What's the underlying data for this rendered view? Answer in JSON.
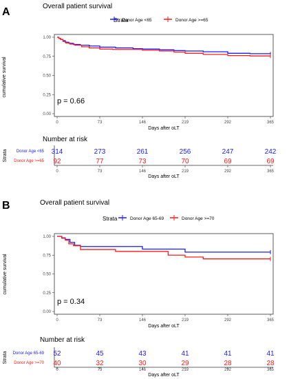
{
  "chart_data": [
    {
      "panel_letter": "A",
      "title": "Overall patient survival",
      "type": "line",
      "legend": {
        "title": "Strata",
        "position": "top"
      },
      "xlabel": "Days after oLT",
      "ylabel": "cumulative survival",
      "x_ticks": [
        0,
        73,
        146,
        219,
        292,
        365
      ],
      "y_ticks": [
        "0.00",
        "0.25",
        "0.50",
        "0.75",
        "1.00"
      ],
      "xlim": [
        0,
        365
      ],
      "ylim": [
        0,
        1
      ],
      "grid": false,
      "p_value": "p = 0.66",
      "series": [
        {
          "name": "Donor Age <65",
          "color": "#1a1aff",
          "points": [
            [
              0,
              1.0
            ],
            [
              3,
              0.985
            ],
            [
              6,
              0.97
            ],
            [
              10,
              0.955
            ],
            [
              14,
              0.935
            ],
            [
              20,
              0.92
            ],
            [
              28,
              0.905
            ],
            [
              40,
              0.895
            ],
            [
              55,
              0.885
            ],
            [
              73,
              0.87
            ],
            [
              100,
              0.86
            ],
            [
              130,
              0.85
            ],
            [
              146,
              0.845
            ],
            [
              175,
              0.835
            ],
            [
              200,
              0.825
            ],
            [
              219,
              0.82
            ],
            [
              250,
              0.81
            ],
            [
              292,
              0.79
            ],
            [
              330,
              0.785
            ],
            [
              365,
              0.78
            ]
          ]
        },
        {
          "name": "Donor Age >=65",
          "color": "#ff1a1a",
          "points": [
            [
              0,
              1.0
            ],
            [
              3,
              0.985
            ],
            [
              6,
              0.97
            ],
            [
              10,
              0.945
            ],
            [
              15,
              0.925
            ],
            [
              22,
              0.91
            ],
            [
              30,
              0.895
            ],
            [
              42,
              0.875
            ],
            [
              55,
              0.86
            ],
            [
              73,
              0.845
            ],
            [
              95,
              0.84
            ],
            [
              146,
              0.83
            ],
            [
              175,
              0.82
            ],
            [
              200,
              0.805
            ],
            [
              219,
              0.79
            ],
            [
              250,
              0.775
            ],
            [
              292,
              0.76
            ],
            [
              330,
              0.755
            ],
            [
              365,
              0.755
            ]
          ]
        }
      ],
      "risk_table": {
        "title": "Number at risk",
        "ylabel": "Strata",
        "xlabel": "Days after oLT",
        "rows": [
          {
            "label": "Donor Age <65",
            "color": "#1a1aff",
            "values": [
              314,
              273,
              261,
              256,
              247,
              242
            ]
          },
          {
            "label": "Donor Age >=65",
            "color": "#ff1a1a",
            "values": [
              92,
              77,
              73,
              70,
              69,
              69
            ]
          }
        ]
      }
    },
    {
      "panel_letter": "B",
      "title": "Overall patient survival",
      "type": "line",
      "legend": {
        "title": "Strata",
        "position": "top"
      },
      "xlabel": "Days after oLT",
      "ylabel": "cumulative survival",
      "x_ticks": [
        0,
        73,
        146,
        219,
        292,
        365
      ],
      "y_ticks": [
        "0.00",
        "0.25",
        "0.50",
        "0.75",
        "1.00"
      ],
      "xlim": [
        0,
        365
      ],
      "ylim": [
        0,
        1
      ],
      "grid": false,
      "p_value": "p = 0.34",
      "series": [
        {
          "name": "Donor Age 65-69",
          "color": "#1a1aff",
          "points": [
            [
              0,
              1.0
            ],
            [
              8,
              0.98
            ],
            [
              14,
              0.96
            ],
            [
              22,
              0.92
            ],
            [
              30,
              0.88
            ],
            [
              40,
              0.865
            ],
            [
              73,
              0.865
            ],
            [
              146,
              0.83
            ],
            [
              219,
              0.79
            ],
            [
              292,
              0.79
            ],
            [
              365,
              0.79
            ]
          ]
        },
        {
          "name": "Donor Age >=70",
          "color": "#ff1a1a",
          "points": [
            [
              0,
              1.0
            ],
            [
              8,
              0.975
            ],
            [
              14,
              0.95
            ],
            [
              20,
              0.9
            ],
            [
              28,
              0.875
            ],
            [
              40,
              0.825
            ],
            [
              73,
              0.825
            ],
            [
              100,
              0.8
            ],
            [
              146,
              0.8
            ],
            [
              190,
              0.75
            ],
            [
              219,
              0.725
            ],
            [
              250,
              0.7
            ],
            [
              292,
              0.7
            ],
            [
              365,
              0.7
            ]
          ]
        }
      ],
      "risk_table": {
        "title": "Number at risk",
        "ylabel": "Strata",
        "xlabel": "Days after oLT",
        "rows": [
          {
            "label": "Donor Age 65-69",
            "color": "#1a1aff",
            "values": [
              52,
              45,
              43,
              41,
              41,
              41
            ]
          },
          {
            "label": "Donor Age >=70",
            "color": "#ff1a1a",
            "values": [
              40,
              32,
              30,
              29,
              28,
              28
            ]
          }
        ]
      }
    }
  ]
}
